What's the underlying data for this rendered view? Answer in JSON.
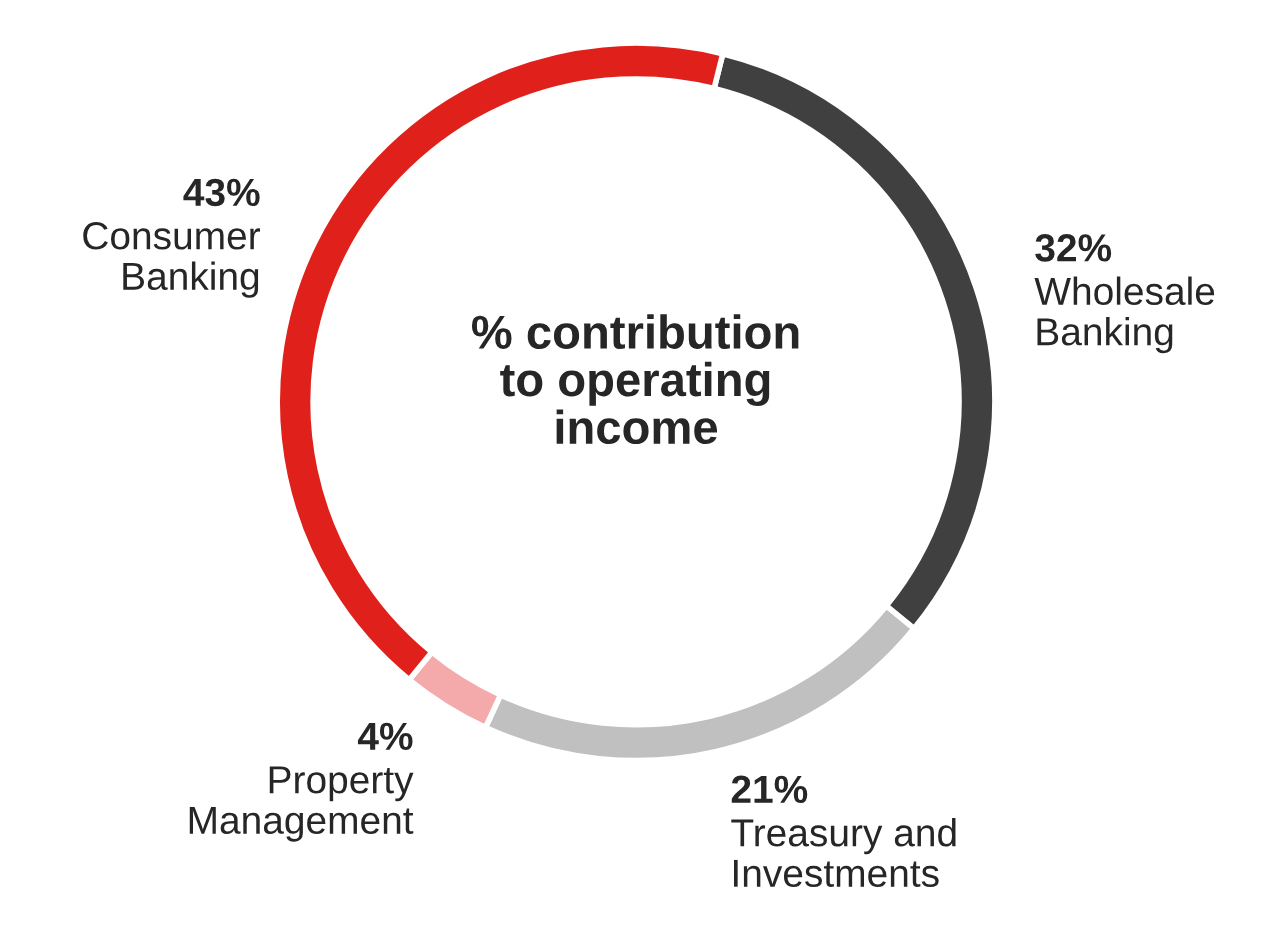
{
  "chart_data": {
    "type": "donut",
    "title": "% contribution\nto operating\nincome",
    "categories": [
      "Wholesale\nBanking",
      "Treasury and\nInvestments",
      "Property\nManagement",
      "Consumer\nBanking"
    ],
    "values": [
      32,
      21,
      4,
      43
    ],
    "value_labels": [
      "32%",
      "21%",
      "4%",
      "43%"
    ],
    "colors": [
      "#404040",
      "#c0c0c0",
      "#f4aaaa",
      "#e0201a"
    ],
    "legend": false
  }
}
